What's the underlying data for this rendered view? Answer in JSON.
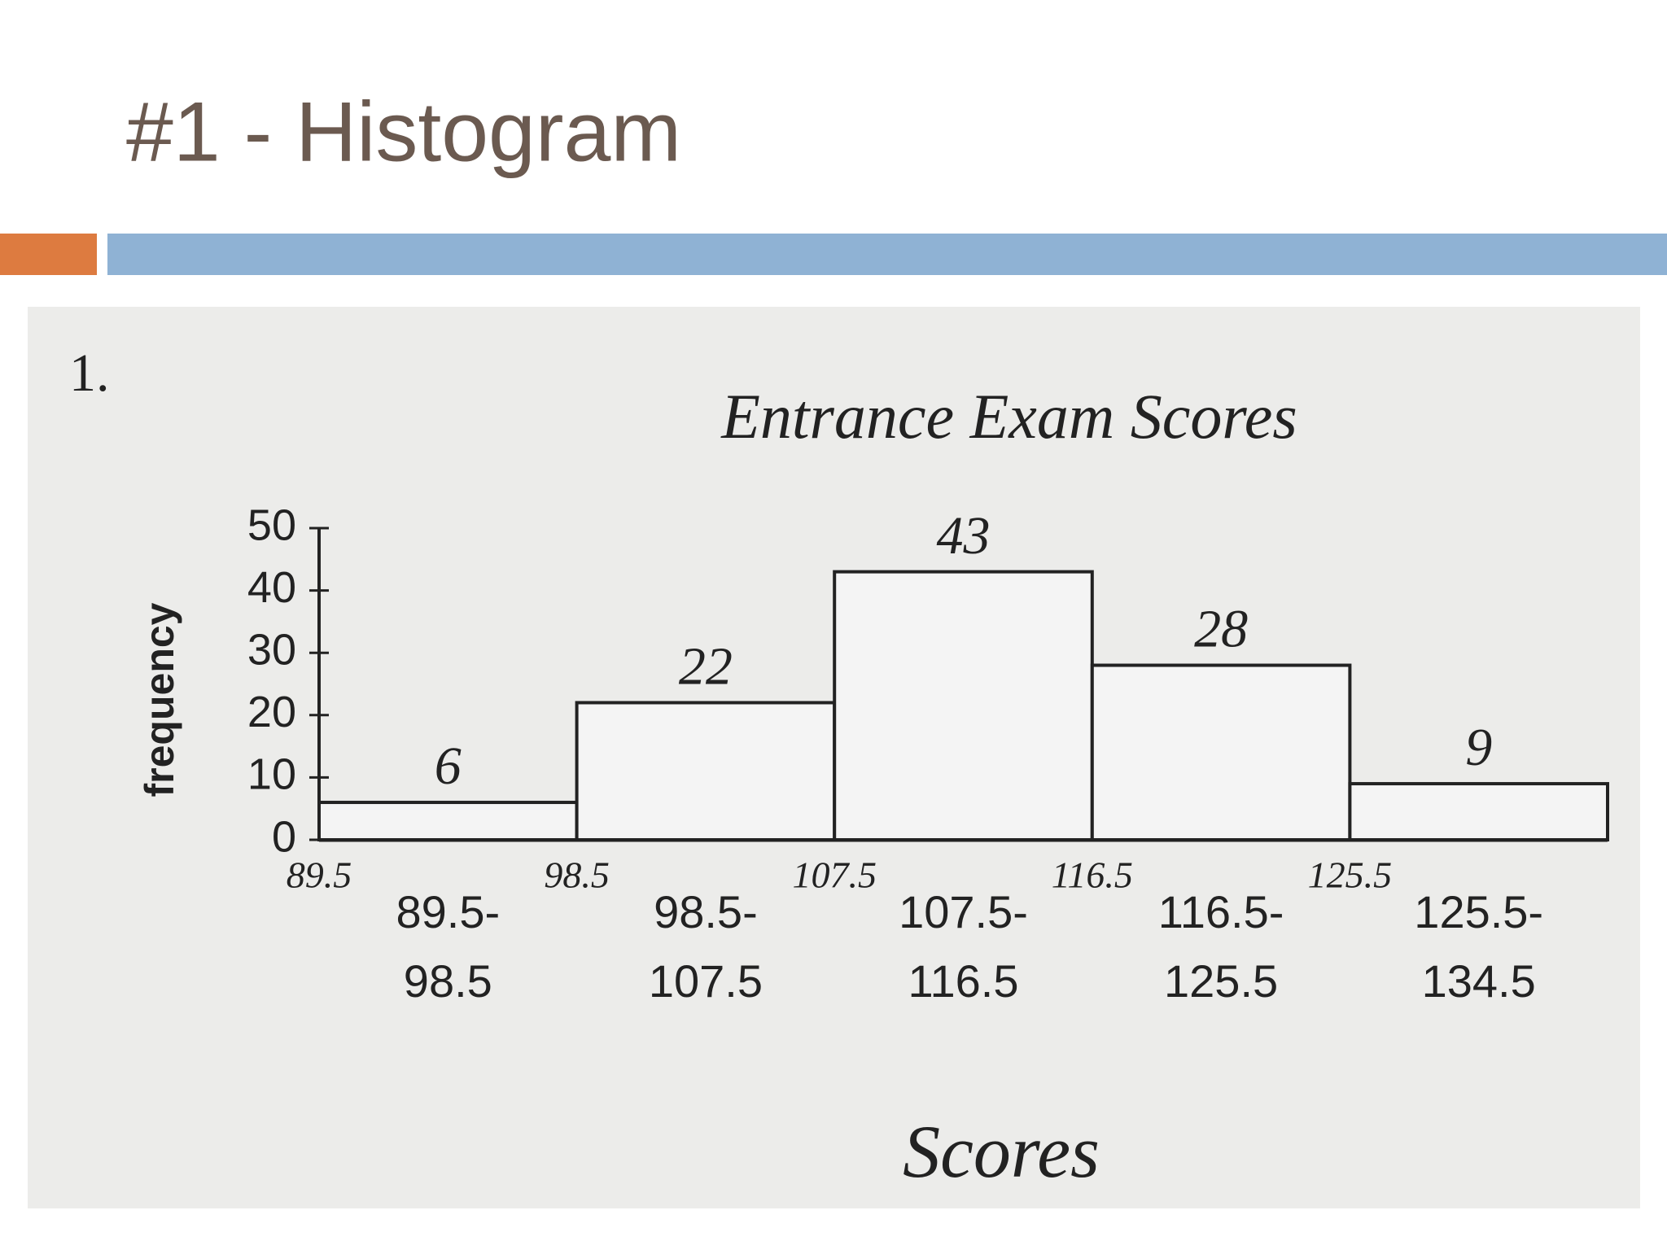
{
  "header": {
    "title": "#1 - Histogram"
  },
  "chart_data": {
    "type": "histogram",
    "number": "1.",
    "title": "Entrance Exam Scores",
    "x_label": "Scores",
    "y_label": "frequency",
    "bins": [
      89.5,
      98.5,
      107.5,
      116.5,
      125.5,
      134.5
    ],
    "categories": [
      [
        "89.5-",
        "98.5"
      ],
      [
        "98.5-",
        "107.5"
      ],
      [
        "107.5-",
        "116.5"
      ],
      [
        "116.5-",
        "125.5"
      ],
      [
        "125.5-",
        "134.5"
      ]
    ],
    "values": [
      6,
      22,
      43,
      28,
      9
    ],
    "xlim": [
      89.5,
      134.5
    ],
    "ylim": [
      0,
      50
    ],
    "yticks": [
      0,
      10,
      20,
      30,
      40,
      50
    ],
    "color": "#f4f4f4"
  }
}
